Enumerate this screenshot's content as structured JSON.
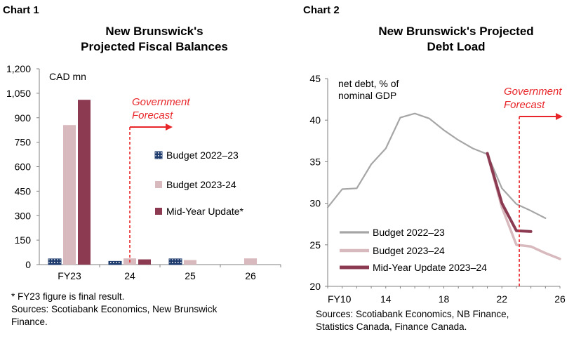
{
  "charts": [
    {
      "label": "Chart 1",
      "title": "New Brunswick's\nProjected Fiscal Balances",
      "unit_label": "CAD mn",
      "forecast_label": "Government\nForecast",
      "footnote_1": "* FY23 figure is final result.",
      "footnote_2": "Sources: Scotiabank Economics, New Brunswick\nFinance.",
      "colors": {
        "budget_2022": "#1f3c6e",
        "budget_2023": "#d8b9be",
        "midyear": "#8b3a52",
        "forecast": "#e8262a",
        "axis": "#808080"
      }
    },
    {
      "label": "Chart 2",
      "title": "New Brunswick's Projected\nDebt Load",
      "unit_label": "net debt, % of\nnominal GDP",
      "forecast_label": "Government\nForecast",
      "footnote": "Sources: Scotiabank Economics, NB Finance,\nStatistics Canada, Finance Canada.",
      "colors": {
        "budget_2022": "#a6a6a6",
        "budget_2023": "#d8b9be",
        "midyear": "#8b3a52",
        "forecast": "#e8262a",
        "axis": "#808080"
      }
    }
  ],
  "chart_data": [
    {
      "type": "bar",
      "categories": [
        "FY23",
        "24",
        "25",
        "26"
      ],
      "ylim": [
        0,
        1200
      ],
      "yticks": [
        0,
        150,
        300,
        450,
        600,
        750,
        900,
        1050,
        1200
      ],
      "ytick_labels": [
        "0",
        "150",
        "300",
        "450",
        "600",
        "750",
        "900",
        "1,050",
        "1,200"
      ],
      "forecast_start_category": "24",
      "series": [
        {
          "name": "Budget 2022–23",
          "values": [
            35,
            20,
            35,
            null
          ]
        },
        {
          "name": "Budget 2023-24",
          "values": [
            855,
            38,
            28,
            38
          ]
        },
        {
          "name": "Mid-Year Update*",
          "values": [
            1010,
            32,
            null,
            null
          ]
        }
      ]
    },
    {
      "type": "line",
      "ylim": [
        20,
        45
      ],
      "yticks": [
        20,
        25,
        30,
        35,
        40,
        45
      ],
      "xlim": [
        10,
        26
      ],
      "xticks": [
        10,
        14,
        18,
        22,
        26
      ],
      "xtick_labels": [
        "FY10",
        "14",
        "18",
        "22",
        "26"
      ],
      "forecast_start_x": 23.2,
      "series": [
        {
          "name": "Budget 2022–23",
          "x": [
            10,
            11,
            12,
            13,
            14,
            15,
            16,
            17,
            18,
            19,
            20,
            21,
            22,
            23,
            24,
            25
          ],
          "y": [
            29.5,
            31.7,
            31.8,
            34.7,
            36.6,
            40.3,
            40.8,
            40.2,
            38.8,
            37.6,
            36.6,
            35.9,
            31.8,
            29.9,
            29.1,
            28.2
          ]
        },
        {
          "name": "Budget 2023–24",
          "x": [
            21,
            22,
            23,
            24,
            25,
            26
          ],
          "y": [
            35.9,
            29.5,
            25.0,
            24.8,
            24.0,
            23.3
          ]
        },
        {
          "name": "Mid-Year Update 2023–24",
          "x": [
            21,
            22,
            23,
            24
          ],
          "y": [
            36.0,
            30.0,
            26.7,
            26.6
          ]
        }
      ]
    }
  ]
}
